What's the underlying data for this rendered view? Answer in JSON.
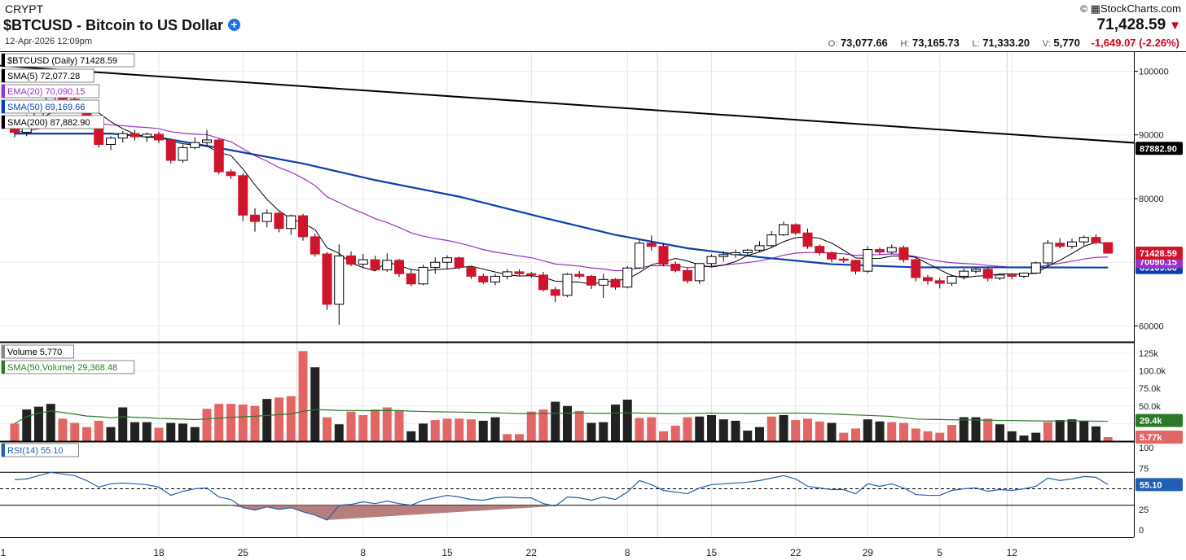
{
  "header": {
    "exchange": "CRYPT",
    "title": "$BTCUSD - Bitcoin to US Dollar",
    "datetime": "12-Apr-2026 12:09pm",
    "brand": "StockCharts.com",
    "brand_mark": "©",
    "last_price": "71,428.59",
    "open_label": "O:",
    "open": "73,077.66",
    "high_label": "H:",
    "high": "73,165.73",
    "low_label": "L:",
    "low": "71,333.20",
    "volume_label": "V:",
    "volume": "5,770",
    "change": "-1,649.07 (-2.26%)"
  },
  "colors": {
    "up": "#ffffff",
    "down": "#d0142c",
    "sma50": "#0b3fae",
    "ema20": "#9b30c7",
    "sma200": "#000000",
    "sma5": "#000000",
    "vol_up": "#222222",
    "vol_down": "#e26666",
    "vol_sma": "#2a7a2a",
    "rsi": "#1f5fb4",
    "rsi_oversold_fill": "#b07070"
  },
  "chart_data": {
    "type": "candlestick",
    "symbol": "$BTCUSD",
    "interval": "Daily",
    "x_tick_labels": [
      "1",
      "18",
      "25",
      "8",
      "15",
      "22",
      "8",
      "15",
      "22",
      "29",
      "5",
      "12"
    ],
    "ohlc": [
      [
        91500,
        92300,
        89600,
        90400
      ],
      [
        90400,
        93200,
        89800,
        92800
      ],
      [
        92800,
        94500,
        91800,
        94000
      ],
      [
        94000,
        97200,
        93500,
        96500
      ],
      [
        96500,
        97500,
        95200,
        95600
      ],
      [
        95600,
        96100,
        93400,
        93900
      ],
      [
        93900,
        94400,
        92100,
        92800
      ],
      [
        92800,
        93000,
        88000,
        88500
      ],
      [
        88500,
        89800,
        87600,
        89500
      ],
      [
        89500,
        90600,
        88800,
        90200
      ],
      [
        90200,
        90800,
        89100,
        89700
      ],
      [
        89700,
        90400,
        88900,
        90100
      ],
      [
        90100,
        90500,
        88700,
        89200
      ],
      [
        89200,
        89400,
        85500,
        86000
      ],
      [
        86000,
        88500,
        85600,
        88000
      ],
      [
        88000,
        89600,
        87700,
        88800
      ],
      [
        88800,
        90800,
        88300,
        89200
      ],
      [
        89200,
        89400,
        83800,
        84200
      ],
      [
        84200,
        84600,
        83100,
        83600
      ],
      [
        83600,
        84000,
        76500,
        77400
      ],
      [
        77400,
        78500,
        74800,
        76400
      ],
      [
        76400,
        78300,
        75500,
        77700
      ],
      [
        77700,
        77900,
        74700,
        75300
      ],
      [
        75300,
        77500,
        74300,
        77300
      ],
      [
        77300,
        77600,
        73400,
        74000
      ],
      [
        74000,
        74500,
        70900,
        71300
      ],
      [
        71300,
        71600,
        62500,
        63400
      ],
      [
        63400,
        72800,
        60200,
        71000
      ],
      [
        71000,
        71700,
        69400,
        69700
      ],
      [
        69700,
        71300,
        69100,
        70400
      ],
      [
        70400,
        71000,
        68600,
        68800
      ],
      [
        68800,
        71400,
        68500,
        70300
      ],
      [
        70300,
        70500,
        67700,
        68200
      ],
      [
        68200,
        68800,
        66200,
        66600
      ],
      [
        66600,
        69600,
        66400,
        69200
      ],
      [
        69200,
        70800,
        68200,
        70000
      ],
      [
        70000,
        71100,
        69000,
        70700
      ],
      [
        70700,
        70900,
        68900,
        69200
      ],
      [
        69200,
        69400,
        67400,
        67800
      ],
      [
        67800,
        68200,
        66600,
        66900
      ],
      [
        66900,
        68200,
        66400,
        67800
      ],
      [
        67800,
        68900,
        67300,
        68500
      ],
      [
        68500,
        68900,
        67900,
        68200
      ],
      [
        68200,
        68500,
        67600,
        68000
      ],
      [
        68000,
        68500,
        65400,
        65700
      ],
      [
        65700,
        66100,
        63700,
        64800
      ],
      [
        64800,
        68300,
        64500,
        68100
      ],
      [
        68100,
        68600,
        67500,
        67800
      ],
      [
        67800,
        68000,
        65800,
        66400
      ],
      [
        66400,
        68200,
        64400,
        67300
      ],
      [
        67300,
        67500,
        65700,
        66100
      ],
      [
        66100,
        69400,
        65900,
        69100
      ],
      [
        69100,
        73500,
        68900,
        73000
      ],
      [
        73000,
        74200,
        71800,
        72500
      ],
      [
        72500,
        72900,
        69400,
        69700
      ],
      [
        69700,
        70100,
        68400,
        68700
      ],
      [
        68700,
        69100,
        66700,
        67100
      ],
      [
        67100,
        69800,
        66600,
        69800
      ],
      [
        69800,
        71200,
        69400,
        70900
      ],
      [
        70900,
        71700,
        70100,
        71200
      ],
      [
        71200,
        72000,
        70700,
        71500
      ],
      [
        71500,
        72100,
        71100,
        71900
      ],
      [
        71900,
        73300,
        71600,
        72600
      ],
      [
        72600,
        74900,
        72300,
        74300
      ],
      [
        74300,
        76400,
        74100,
        75900
      ],
      [
        75900,
        76100,
        74300,
        74600
      ],
      [
        74600,
        75300,
        72100,
        72500
      ],
      [
        72500,
        72800,
        71100,
        71500
      ],
      [
        71500,
        71700,
        70000,
        70500
      ],
      [
        70500,
        70800,
        69900,
        70300
      ],
      [
        70300,
        70400,
        68100,
        68600
      ],
      [
        68600,
        72500,
        68300,
        72000
      ],
      [
        72000,
        72300,
        71200,
        71600
      ],
      [
        71600,
        72800,
        71300,
        72300
      ],
      [
        72300,
        72600,
        70000,
        70400
      ],
      [
        70400,
        70900,
        67000,
        67600
      ],
      [
        67600,
        68000,
        66500,
        67100
      ],
      [
        67100,
        67500,
        65900,
        66700
      ],
      [
        66700,
        68000,
        66300,
        67800
      ],
      [
        67800,
        69000,
        67300,
        68600
      ],
      [
        68600,
        69100,
        68200,
        68900
      ],
      [
        68900,
        69200,
        67000,
        67500
      ],
      [
        67500,
        68100,
        67200,
        68000
      ],
      [
        68000,
        68200,
        67300,
        67800
      ],
      [
        67800,
        68400,
        67500,
        68300
      ],
      [
        68300,
        70100,
        68100,
        69900
      ],
      [
        69900,
        73500,
        69500,
        73000
      ],
      [
        73000,
        73800,
        72200,
        72500
      ],
      [
        72500,
        73700,
        72100,
        73200
      ],
      [
        73200,
        74200,
        72600,
        73900
      ],
      [
        73900,
        74400,
        72800,
        73100
      ],
      [
        73080,
        73166,
        71333,
        71429
      ]
    ],
    "volume": [
      [
        25000,
        1
      ],
      [
        45000,
        0
      ],
      [
        49000,
        0
      ],
      [
        53000,
        0
      ],
      [
        32000,
        1
      ],
      [
        26000,
        1
      ],
      [
        20000,
        1
      ],
      [
        29000,
        1
      ],
      [
        20000,
        0
      ],
      [
        48000,
        0
      ],
      [
        27000,
        0
      ],
      [
        27000,
        0
      ],
      [
        19000,
        1
      ],
      [
        26000,
        0
      ],
      [
        25000,
        0
      ],
      [
        20000,
        0
      ],
      [
        46000,
        1
      ],
      [
        53000,
        1
      ],
      [
        53000,
        1
      ],
      [
        52000,
        1
      ],
      [
        50000,
        1
      ],
      [
        60000,
        0
      ],
      [
        62000,
        1
      ],
      [
        64000,
        1
      ],
      [
        128000,
        1
      ],
      [
        105000,
        0
      ],
      [
        34000,
        1
      ],
      [
        24000,
        0
      ],
      [
        42000,
        1
      ],
      [
        37000,
        1
      ],
      [
        45000,
        1
      ],
      [
        48000,
        1
      ],
      [
        43000,
        1
      ],
      [
        14000,
        0
      ],
      [
        25000,
        0
      ],
      [
        30000,
        1
      ],
      [
        32000,
        1
      ],
      [
        32000,
        1
      ],
      [
        31000,
        1
      ],
      [
        29000,
        0
      ],
      [
        34000,
        0
      ],
      [
        10000,
        1
      ],
      [
        10000,
        1
      ],
      [
        42000,
        1
      ],
      [
        45000,
        1
      ],
      [
        56000,
        0
      ],
      [
        50000,
        0
      ],
      [
        43000,
        1
      ],
      [
        26000,
        0
      ],
      [
        27000,
        0
      ],
      [
        52000,
        0
      ],
      [
        59000,
        0
      ],
      [
        33000,
        1
      ],
      [
        34000,
        1
      ],
      [
        14000,
        1
      ],
      [
        22000,
        1
      ],
      [
        34000,
        1
      ],
      [
        35000,
        0
      ],
      [
        37000,
        0
      ],
      [
        31000,
        0
      ],
      [
        29000,
        0
      ],
      [
        15000,
        0
      ],
      [
        20000,
        0
      ],
      [
        35000,
        1
      ],
      [
        37000,
        0
      ],
      [
        30000,
        1
      ],
      [
        32000,
        1
      ],
      [
        28000,
        1
      ],
      [
        26000,
        0
      ],
      [
        12000,
        1
      ],
      [
        18000,
        1
      ],
      [
        31000,
        0
      ],
      [
        28000,
        0
      ],
      [
        27000,
        1
      ],
      [
        26000,
        1
      ],
      [
        18000,
        1
      ],
      [
        14000,
        1
      ],
      [
        12000,
        1
      ],
      [
        23000,
        1
      ],
      [
        34000,
        0
      ],
      [
        34000,
        0
      ],
      [
        32000,
        1
      ],
      [
        24000,
        0
      ],
      [
        14000,
        0
      ],
      [
        8000,
        0
      ],
      [
        12000,
        0
      ],
      [
        27000,
        1
      ],
      [
        30000,
        0
      ],
      [
        31000,
        0
      ],
      [
        29000,
        0
      ],
      [
        21000,
        0
      ],
      [
        5770,
        1
      ]
    ],
    "sma200": [
      [
        -10,
        102000
      ],
      [
        100,
        87882.9
      ]
    ],
    "sma50_points": [
      [
        0,
        90200
      ],
      [
        8,
        90200
      ],
      [
        12,
        89600
      ],
      [
        18,
        87600
      ],
      [
        24,
        85500
      ],
      [
        30,
        82900
      ],
      [
        37,
        80300
      ],
      [
        44,
        77000
      ],
      [
        50,
        74300
      ],
      [
        56,
        72200
      ],
      [
        62,
        70800
      ],
      [
        68,
        69700
      ],
      [
        75,
        69200
      ],
      [
        82,
        69200
      ],
      [
        91,
        69169.66
      ]
    ],
    "rsi": [
      [
        0,
        61
      ],
      [
        1,
        62
      ],
      [
        2,
        66
      ],
      [
        3,
        70
      ],
      [
        4,
        68
      ],
      [
        5,
        66
      ],
      [
        6,
        60
      ],
      [
        7,
        52
      ],
      [
        8,
        56
      ],
      [
        9,
        57
      ],
      [
        10,
        56
      ],
      [
        11,
        55
      ],
      [
        12,
        52
      ],
      [
        13,
        42
      ],
      [
        14,
        47
      ],
      [
        15,
        50
      ],
      [
        16,
        51
      ],
      [
        17,
        40
      ],
      [
        18,
        37
      ],
      [
        19,
        27
      ],
      [
        20,
        24
      ],
      [
        21,
        28
      ],
      [
        22,
        25
      ],
      [
        23,
        27
      ],
      [
        24,
        22
      ],
      [
        25,
        18
      ],
      [
        26,
        12
      ],
      [
        27,
        30
      ],
      [
        28,
        31
      ],
      [
        29,
        34
      ],
      [
        30,
        32
      ],
      [
        31,
        35
      ],
      [
        32,
        32
      ],
      [
        33,
        30
      ],
      [
        34,
        36
      ],
      [
        35,
        39
      ],
      [
        36,
        42
      ],
      [
        37,
        40
      ],
      [
        38,
        37
      ],
      [
        39,
        36
      ],
      [
        40,
        39
      ],
      [
        41,
        40
      ],
      [
        42,
        39
      ],
      [
        43,
        39
      ],
      [
        44,
        32
      ],
      [
        45,
        29
      ],
      [
        46,
        40
      ],
      [
        47,
        39
      ],
      [
        48,
        36
      ],
      [
        49,
        40
      ],
      [
        50,
        37
      ],
      [
        51,
        46
      ],
      [
        52,
        60
      ],
      [
        53,
        55
      ],
      [
        54,
        48
      ],
      [
        55,
        46
      ],
      [
        56,
        44
      ],
      [
        57,
        51
      ],
      [
        58,
        55
      ],
      [
        59,
        56
      ],
      [
        60,
        57
      ],
      [
        61,
        58
      ],
      [
        62,
        60
      ],
      [
        63,
        63
      ],
      [
        64,
        66
      ],
      [
        65,
        62
      ],
      [
        66,
        53
      ],
      [
        67,
        51
      ],
      [
        68,
        49
      ],
      [
        69,
        49
      ],
      [
        70,
        44
      ],
      [
        71,
        56
      ],
      [
        72,
        53
      ],
      [
        73,
        56
      ],
      [
        74,
        51
      ],
      [
        75,
        43
      ],
      [
        76,
        42
      ],
      [
        77,
        42
      ],
      [
        78,
        48
      ],
      [
        79,
        50
      ],
      [
        80,
        51
      ],
      [
        81,
        47
      ],
      [
        82,
        49
      ],
      [
        83,
        48
      ],
      [
        84,
        50
      ],
      [
        85,
        53
      ],
      [
        86,
        63
      ],
      [
        87,
        60
      ],
      [
        88,
        62
      ],
      [
        89,
        65
      ],
      [
        90,
        64
      ],
      [
        91,
        55.1
      ]
    ],
    "price_axis": {
      "min": 57500,
      "max": 103000,
      "ticks": [
        "100000",
        "90000",
        "80000",
        "60000"
      ]
    },
    "volume_axis": {
      "max": 140000,
      "ticks": [
        "125k",
        "100.0k",
        "75.0k",
        "50.0k",
        "25.0k"
      ]
    },
    "rsi_axis": {
      "ticks": [
        "100",
        "75",
        "25",
        "0"
      ],
      "overbought": 70,
      "oversold": 30
    }
  },
  "panels": {
    "price_legend": [
      {
        "label": "$BTCUSD (Daily) 71428.59",
        "color": "#000000",
        "text_color": "#000000"
      },
      {
        "label": "SMA(5) 72,077.28",
        "color": "#000000",
        "text_color": "#000000"
      },
      {
        "label": "EMA(20) 70,090.15",
        "color": "#9b30c7",
        "text_color": "#9b30c7"
      },
      {
        "label": "SMA(50) 69,169.66",
        "color": "#0b3fae",
        "text_color": "#0b3fae"
      },
      {
        "label": "SMA(200) 87,882.90",
        "color": "#000000",
        "text_color": "#000000"
      }
    ],
    "price_tags": [
      {
        "value": "87882.90",
        "price": 87882.9,
        "bg": "#000000",
        "fg": "#ffffff"
      },
      {
        "value": "71428.59",
        "price": 71428.59,
        "bg": "#d0142c",
        "fg": "#ffffff"
      },
      {
        "value": "70090.15",
        "price": 70090.15,
        "bg": "#9b30c7",
        "fg": "#ffffff"
      },
      {
        "value": "69169.66",
        "price": 69169.66,
        "bg": "#0b3fae",
        "fg": "#ffffff"
      }
    ],
    "volume_legend": [
      {
        "label": "Volume 5,770",
        "color": "#888888",
        "text_color": "#000000"
      },
      {
        "label": "SMA(50,Volume) 29,368.48",
        "color": "#2a7a2a",
        "text_color": "#2a7a2a"
      }
    ],
    "volume_tags": [
      {
        "value": "29.4k",
        "vol": 29368,
        "bg": "#2a7a2a",
        "fg": "#ffffff"
      },
      {
        "value": "5.77k",
        "vol": 5770,
        "bg": "#e26666",
        "fg": "#ffffff"
      }
    ],
    "rsi_legend": [
      {
        "label": "RSI(14) 55.10",
        "color": "#1f5fb4",
        "text_color": "#1f5fb4"
      }
    ],
    "rsi_tag": {
      "value": "55.10",
      "bg": "#1f5fb4",
      "fg": "#ffffff"
    }
  }
}
